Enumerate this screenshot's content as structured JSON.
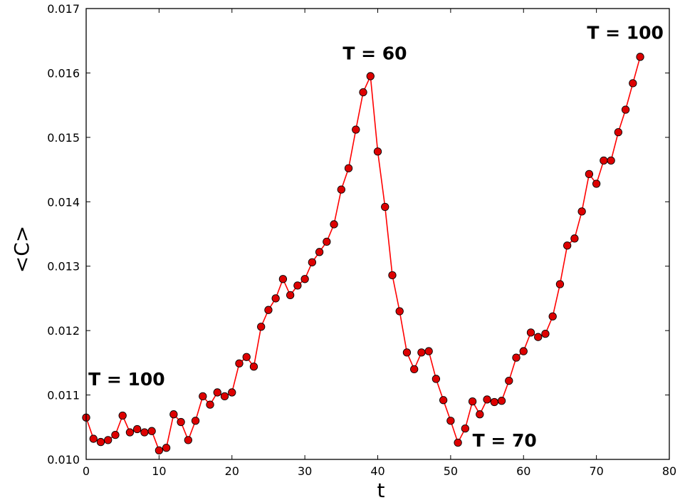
{
  "chart_data": {
    "type": "line",
    "title": "",
    "xlabel": "t",
    "ylabel": "<C>",
    "xlim": [
      0,
      80
    ],
    "ylim": [
      0.01,
      0.017
    ],
    "xticks": [
      0,
      10,
      20,
      30,
      40,
      50,
      60,
      70,
      80
    ],
    "xtick_labels": [
      "0",
      "10",
      "20",
      "30",
      "40",
      "50",
      "60",
      "70",
      "80"
    ],
    "yticks": [
      0.01,
      0.011,
      0.012,
      0.013,
      0.014,
      0.015,
      0.016,
      0.017
    ],
    "ytick_labels": [
      "0.010",
      "0.011",
      "0.012",
      "0.013",
      "0.014",
      "0.015",
      "0.016",
      "0.017"
    ],
    "grid": false,
    "line_color": "#ff0000",
    "marker_color": "#dd0000",
    "x": [
      0,
      1,
      2,
      3,
      4,
      5,
      6,
      7,
      8,
      9,
      10,
      11,
      12,
      13,
      14,
      15,
      16,
      17,
      18,
      19,
      20,
      21,
      22,
      23,
      24,
      25,
      26,
      27,
      28,
      29,
      30,
      31,
      32,
      33,
      34,
      35,
      36,
      37,
      38,
      39,
      40,
      41,
      42,
      43,
      44,
      45,
      46,
      47,
      48,
      49,
      50,
      51,
      52,
      53,
      54,
      55,
      56,
      57,
      58,
      59,
      60,
      61,
      62,
      63,
      64,
      65,
      66,
      67,
      68,
      69,
      70,
      71,
      72,
      73,
      74,
      75,
      76
    ],
    "y": [
      0.01065,
      0.01032,
      0.01027,
      0.0103,
      0.01038,
      0.01068,
      0.01042,
      0.01047,
      0.01042,
      0.01044,
      0.01014,
      0.01018,
      0.0107,
      0.01058,
      0.0103,
      0.0106,
      0.01098,
      0.01085,
      0.01104,
      0.01098,
      0.01104,
      0.01149,
      0.01159,
      0.01144,
      0.01206,
      0.01232,
      0.0125,
      0.0128,
      0.01255,
      0.0127,
      0.0128,
      0.01306,
      0.01322,
      0.01338,
      0.01365,
      0.01419,
      0.01452,
      0.01512,
      0.0157,
      0.01595,
      0.01478,
      0.01392,
      0.01286,
      0.0123,
      0.01166,
      0.0114,
      0.01166,
      0.01168,
      0.01125,
      0.01092,
      0.0106,
      0.01026,
      0.01048,
      0.0109,
      0.0107,
      0.01093,
      0.01089,
      0.01091,
      0.01122,
      0.01158,
      0.01168,
      0.01197,
      0.0119,
      0.01195,
      0.01222,
      0.01272,
      0.01332,
      0.01343,
      0.01385,
      0.01443,
      0.01428,
      0.01464,
      0.01464,
      0.01508,
      0.01543,
      0.01584,
      0.01625
    ],
    "annotations": [
      {
        "text": "T = 100",
        "x": 0.3,
        "y": 0.01115
      },
      {
        "text": "T = 60",
        "x": 35.2,
        "y": 0.01621
      },
      {
        "text": "T = 70",
        "x": 53.0,
        "y": 0.0102
      },
      {
        "text": "T = 100",
        "x": 68.7,
        "y": 0.01653
      }
    ]
  }
}
